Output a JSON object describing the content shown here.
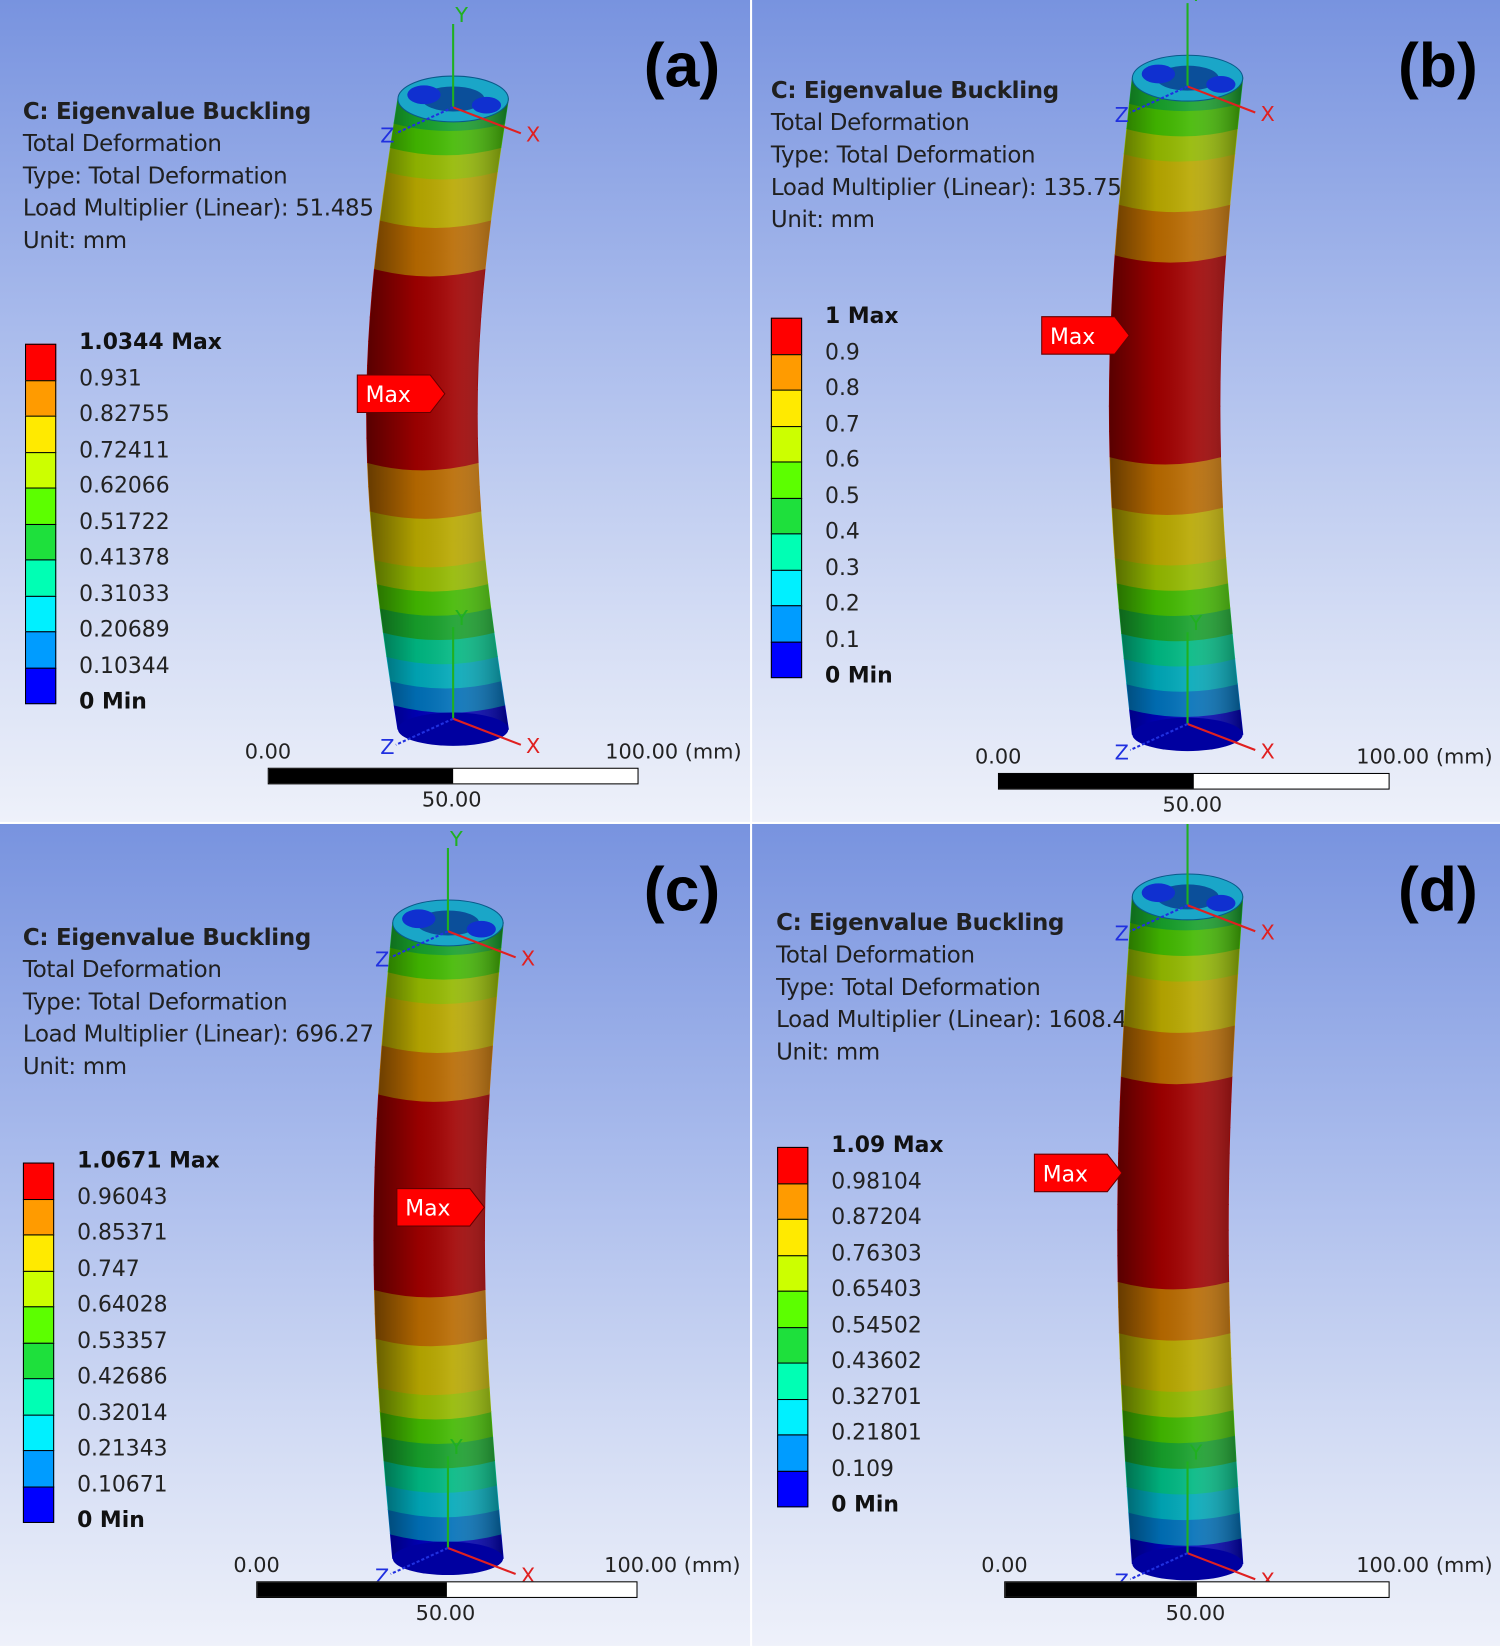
{
  "panels": [
    {
      "id": "a",
      "letter": "(a)",
      "title": "C: Eigenvalue Buckling",
      "subtitle": "Total Deformation",
      "type": "Type: Total Deformation",
      "load_multiplier": "Load Multiplier (Linear): 51.485",
      "unit": "Unit: mm",
      "legend": [
        "1.0344 Max",
        "0.931",
        "0.82755",
        "0.72411",
        "0.62066",
        "0.51722",
        "0.41378",
        "0.31033",
        "0.20689",
        "0.10344",
        "0 Min"
      ],
      "max_label": "Max",
      "scale": {
        "left": "0.00",
        "mid": "50.00",
        "right": "100.00 (mm)"
      }
    },
    {
      "id": "b",
      "letter": "(b)",
      "title": "C: Eigenvalue Buckling",
      "subtitle": "Total Deformation",
      "type": "Type: Total Deformation",
      "load_multiplier": "Load Multiplier (Linear): 135.75",
      "unit": "Unit: mm",
      "legend": [
        "1 Max",
        "0.9",
        "0.8",
        "0.7",
        "0.6",
        "0.5",
        "0.4",
        "0.3",
        "0.2",
        "0.1",
        "0 Min"
      ],
      "max_label": "Max",
      "scale": {
        "left": "0.00",
        "mid": "50.00",
        "right": "100.00 (mm)"
      }
    },
    {
      "id": "c",
      "letter": "(c)",
      "title": "C: Eigenvalue Buckling",
      "subtitle": "Total Deformation",
      "type": "Type: Total Deformation",
      "load_multiplier": "Load Multiplier (Linear): 696.27",
      "unit": "Unit: mm",
      "legend": [
        "1.0671 Max",
        "0.96043",
        "0.85371",
        "0.747",
        "0.64028",
        "0.53357",
        "0.42686",
        "0.32014",
        "0.21343",
        "0.10671",
        "0 Min"
      ],
      "max_label": "Max",
      "scale": {
        "left": "0.00",
        "mid": "50.00",
        "right": "100.00 (mm)"
      }
    },
    {
      "id": "d",
      "letter": "(d)",
      "title": "C: Eigenvalue Buckling",
      "subtitle": "Total Deformation",
      "type": "Type: Total Deformation",
      "load_multiplier": "Load Multiplier (Linear): 1608.4",
      "unit": "Unit: mm",
      "legend": [
        "1.09 Max",
        "0.98104",
        "0.87204",
        "0.76303",
        "0.65403",
        "0.54502",
        "0.43602",
        "0.32701",
        "0.21801",
        "0.109",
        "0 Min"
      ],
      "max_label": "Max",
      "scale": {
        "left": "0.00",
        "mid": "50.00",
        "right": "100.00 (mm)"
      }
    }
  ],
  "axis_labels": {
    "x": "X",
    "y": "Y",
    "z": "Z"
  },
  "legend_colors": [
    "#ff0000",
    "#ff9b00",
    "#ffea00",
    "#ccff00",
    "#5cff00",
    "#1ee03c",
    "#00ffb4",
    "#00f0ff",
    "#009cff",
    "#0000ff"
  ],
  "colors": {
    "axis_x": "#e02020",
    "axis_y": "#20b020",
    "axis_z": "#2030e0",
    "max_flag": "#ff0000"
  }
}
